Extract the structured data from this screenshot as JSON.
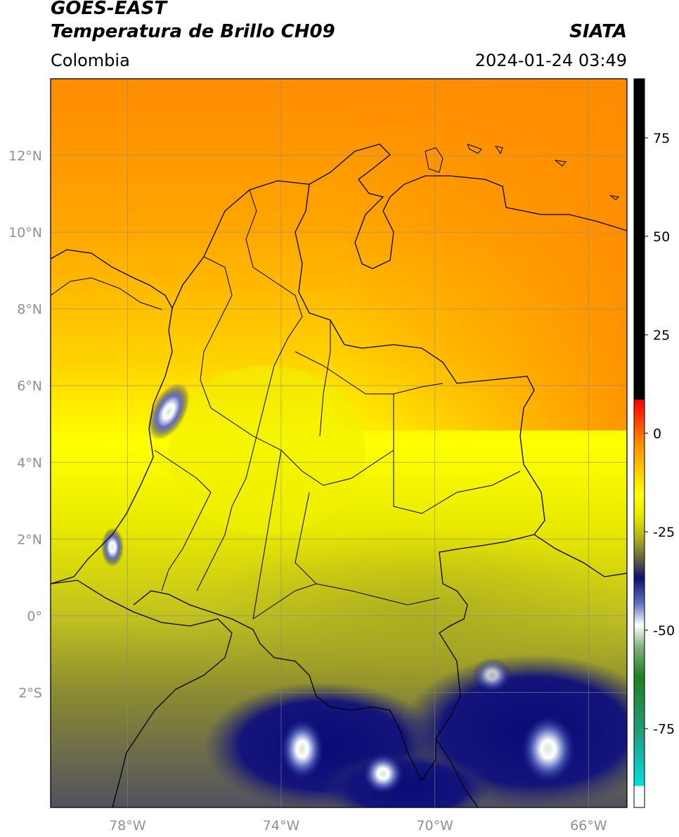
{
  "header": {
    "satellite": "GOES-EAST",
    "product": "Temperatura de Brillo CH09",
    "region": "Colombia",
    "agency": "SIATA",
    "datetime": "2024-01-24 03:49"
  },
  "map": {
    "lon_range": [
      -80,
      -65
    ],
    "lat_range": [
      -5,
      14
    ],
    "lon_ticks": [
      {
        "value": -78,
        "label": "78°W"
      },
      {
        "value": -74,
        "label": "74°W"
      },
      {
        "value": -70,
        "label": "70°W"
      },
      {
        "value": -66,
        "label": "66°W"
      }
    ],
    "lat_ticks": [
      {
        "value": 12,
        "label": "12°N"
      },
      {
        "value": 10,
        "label": "10°N"
      },
      {
        "value": 8,
        "label": "8°N"
      },
      {
        "value": 6,
        "label": "6°N"
      },
      {
        "value": 4,
        "label": "4°N"
      },
      {
        "value": 2,
        "label": "2°N"
      },
      {
        "value": 0,
        "label": "0°"
      },
      {
        "value": -2,
        "label": "2°S"
      }
    ],
    "grid": true
  },
  "colorbar": {
    "range": [
      -95,
      90
    ],
    "ticks": [
      {
        "value": 75,
        "label": "75"
      },
      {
        "value": 50,
        "label": "50"
      },
      {
        "value": 25,
        "label": "25"
      },
      {
        "value": 0,
        "label": "0"
      },
      {
        "value": -25,
        "label": "-25"
      },
      {
        "value": -50,
        "label": "-50"
      },
      {
        "value": -75,
        "label": "-75"
      }
    ]
  },
  "colors": {
    "orange": "#ff8c00",
    "yellow": "#ffff00",
    "olive": "#a0a020",
    "navy": "#0a0a78",
    "black": "#000000"
  }
}
